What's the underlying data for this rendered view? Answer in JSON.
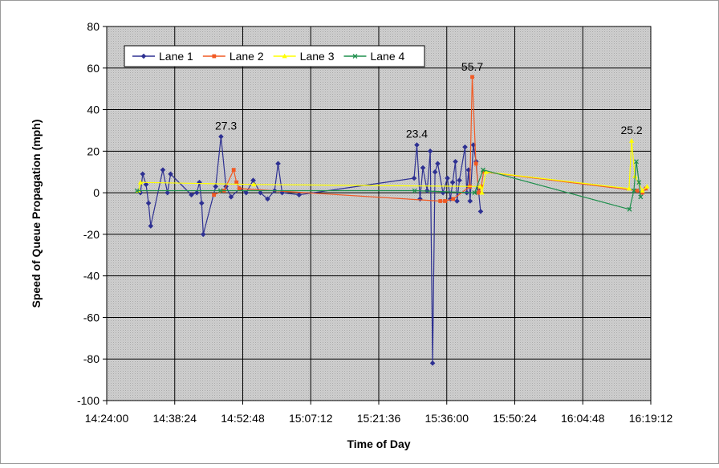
{
  "chart_data": {
    "type": "line",
    "xlabel": "Time of Day",
    "ylabel": "Speed of Queue Propagation (mph)",
    "x_ticks": [
      "14:24:00",
      "14:38:24",
      "14:52:48",
      "15:07:12",
      "15:21:36",
      "15:36:00",
      "15:50:24",
      "16:04:48",
      "16:19:12"
    ],
    "x_range": [
      "14:24:00",
      "16:19:12"
    ],
    "ylim": [
      -100,
      80
    ],
    "y_ticks": [
      80,
      60,
      40,
      20,
      0,
      -20,
      -40,
      -60,
      -80,
      -100
    ],
    "grid": true,
    "legend_position": "top-left",
    "annotations": [
      {
        "x": "14:49:15",
        "y": 27.3,
        "text": "27.3"
      },
      {
        "x": "15:29:40",
        "y": 23.4,
        "text": "23.4"
      },
      {
        "x": "15:41:24",
        "y": 55.7,
        "text": "55.7"
      },
      {
        "x": "16:15:08",
        "y": 25.2,
        "text": "25.2"
      }
    ],
    "series": [
      {
        "name": "Lane 1",
        "color": "#2e3192",
        "marker": "diamond",
        "points": [
          [
            "14:31:09",
            0
          ],
          [
            "14:31:37",
            9
          ],
          [
            "14:32:20",
            4
          ],
          [
            "14:32:51",
            -5
          ],
          [
            "14:33:19",
            -16
          ],
          [
            "14:35:53",
            11
          ],
          [
            "14:36:52",
            0
          ],
          [
            "14:37:31",
            9
          ],
          [
            "14:41:56",
            -1
          ],
          [
            "14:43:04",
            0
          ],
          [
            "14:43:38",
            5
          ],
          [
            "14:44:06",
            -5
          ],
          [
            "14:44:26",
            -20
          ],
          [
            "14:47:04",
            3
          ],
          [
            "14:48:12",
            27
          ],
          [
            "14:49:15",
            3
          ],
          [
            "14:50:20",
            -2
          ],
          [
            "14:52:11",
            2
          ],
          [
            "14:53:32",
            0
          ],
          [
            "14:55:01",
            6
          ],
          [
            "14:56:32",
            0
          ],
          [
            "14:58:04",
            -3
          ],
          [
            "14:59:33",
            1
          ],
          [
            "15:00:17",
            14
          ],
          [
            "15:01:09",
            0
          ],
          [
            "15:04:44",
            -1
          ],
          [
            "15:29:05",
            7
          ],
          [
            "15:29:40",
            23
          ],
          [
            "15:30:20",
            -3
          ],
          [
            "15:30:57",
            12
          ],
          [
            "15:31:51",
            1
          ],
          [
            "15:32:30",
            20
          ],
          [
            "15:33:00",
            -82
          ],
          [
            "15:33:31",
            10
          ],
          [
            "15:34:05",
            14
          ],
          [
            "15:35:12",
            0
          ],
          [
            "15:36:08",
            7
          ],
          [
            "15:36:46",
            -3
          ],
          [
            "15:37:15",
            5
          ],
          [
            "15:37:50",
            15
          ],
          [
            "15:38:11",
            -4
          ],
          [
            "15:38:41",
            6
          ],
          [
            "15:39:52",
            22
          ],
          [
            "15:40:14",
            0
          ],
          [
            "15:40:37",
            11
          ],
          [
            "15:40:56",
            -4
          ],
          [
            "15:41:38",
            23
          ],
          [
            "15:42:13",
            15
          ],
          [
            "15:42:41",
            2
          ],
          [
            "15:43:10",
            -9
          ]
        ]
      },
      {
        "name": "Lane 2",
        "color": "#f15a24",
        "marker": "square",
        "points": [
          [
            "14:46:42",
            -1
          ],
          [
            "14:48:50",
            1
          ],
          [
            "14:50:53",
            11
          ],
          [
            "14:51:28",
            5
          ],
          [
            "14:52:05",
            2
          ],
          [
            "15:34:38",
            -4
          ],
          [
            "15:35:37",
            -4
          ],
          [
            "15:37:22",
            -3
          ],
          [
            "15:40:53",
            3
          ],
          [
            "15:41:24",
            55.7
          ],
          [
            "15:42:11",
            14
          ],
          [
            "15:42:47",
            0
          ],
          [
            "15:43:18",
            3
          ],
          [
            "15:43:48",
            10
          ],
          [
            "16:16:16",
            1
          ],
          [
            "16:17:24",
            0
          ],
          [
            "16:18:08",
            2
          ]
        ]
      },
      {
        "name": "Lane 3",
        "color": "#ffff00",
        "marker": "triangle",
        "points": [
          [
            "14:30:43",
            1
          ],
          [
            "14:31:09",
            5
          ],
          [
            "14:55:11",
            4
          ],
          [
            "15:43:05",
            3
          ],
          [
            "15:43:27",
            0
          ],
          [
            "15:44:17",
            10
          ],
          [
            "16:14:36",
            2
          ],
          [
            "16:15:08",
            25
          ],
          [
            "16:15:51",
            8
          ],
          [
            "16:17:25",
            1
          ],
          [
            "16:18:25",
            3
          ]
        ]
      },
      {
        "name": "Lane 4",
        "color": "#1f8f4d",
        "marker": "x",
        "points": [
          [
            "14:30:25",
            1
          ],
          [
            "14:48:04",
            1
          ],
          [
            "15:29:12",
            1
          ],
          [
            "15:41:54",
            0
          ],
          [
            "15:43:41",
            11
          ],
          [
            "16:14:42",
            -8
          ],
          [
            "16:15:37",
            1
          ],
          [
            "16:16:08",
            15
          ],
          [
            "16:16:42",
            5
          ],
          [
            "16:17:03",
            -2
          ]
        ]
      }
    ]
  }
}
